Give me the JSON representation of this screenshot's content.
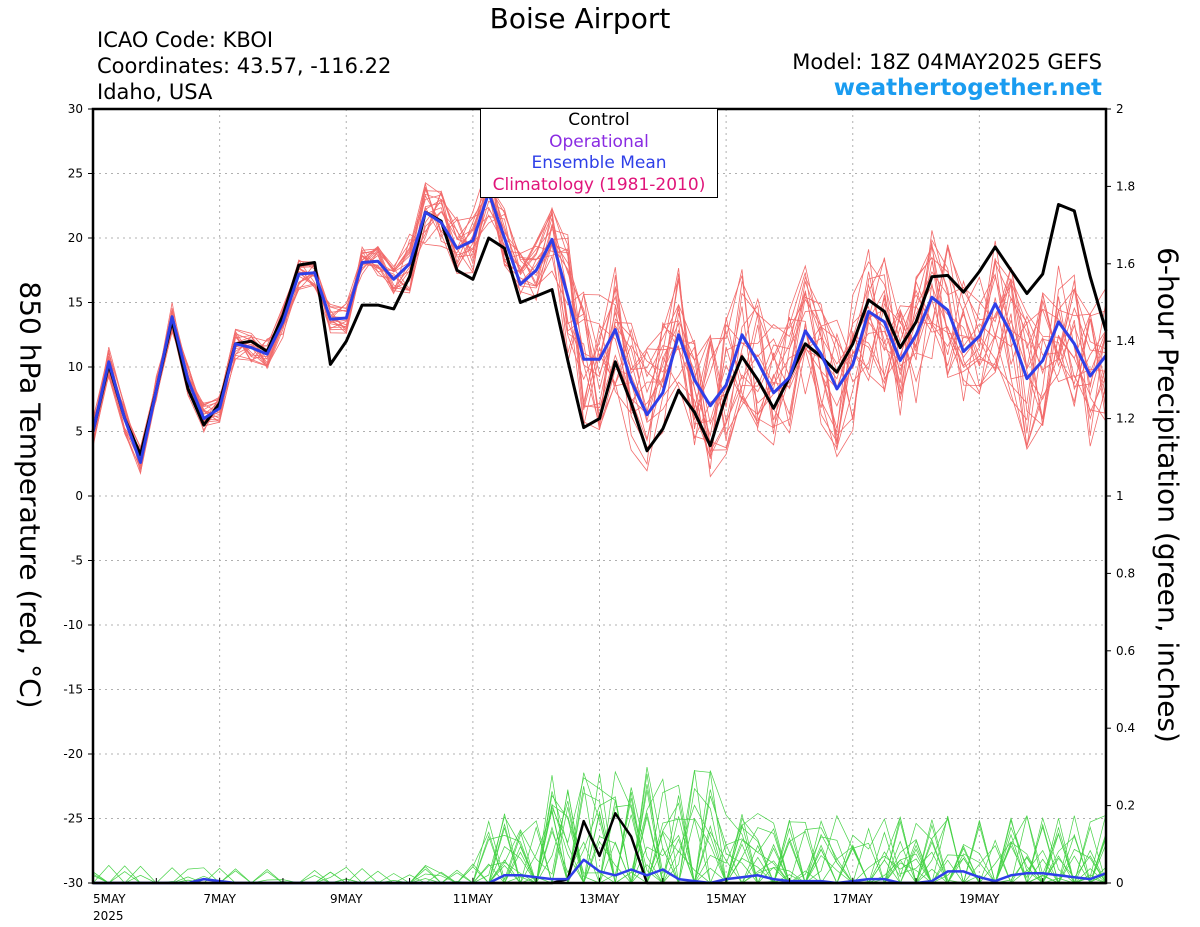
{
  "header": {
    "title": "Boise Airport",
    "icao": "ICAO Code: KBOI",
    "coords": "Coordinates: 43.57, -116.22",
    "region": "Idaho, USA",
    "model": "Model: 18Z 04MAY2025 GEFS",
    "site": "weathertogether.net"
  },
  "colors": {
    "members_temp": "#f26b6b",
    "members_precip": "#46d246",
    "control": "#000000",
    "operational": "#8a2be2",
    "mean": "#2e3fe8",
    "climatology": "#e0157a",
    "site": "#1a9cf0"
  },
  "chart_data": {
    "type": "line",
    "title": "Boise Airport",
    "ylabel": "850 hPa Temperature (red, °C)",
    "y2label": "6-hour Precipitation (green, inches)",
    "ylim": [
      -30,
      30
    ],
    "y2lim": [
      0,
      2
    ],
    "yticks": [
      -30,
      -25,
      -20,
      -15,
      -10,
      -5,
      0,
      5,
      10,
      15,
      20,
      25,
      30
    ],
    "y2ticks": [
      "0",
      "0.2",
      "0.4",
      "0.6",
      "0.8",
      "1",
      "1.2",
      "1.4",
      "1.6",
      "1.8",
      "2"
    ],
    "xlabels": [
      "5MAY",
      "7MAY",
      "9MAY",
      "11MAY",
      "13MAY",
      "15MAY",
      "17MAY",
      "19MAY"
    ],
    "xlabel_year": "2025",
    "grid": true,
    "legend": {
      "position": "top-center",
      "entries": [
        "Control",
        "Operational",
        "Ensemble Mean",
        "Climatology (1981-2010)"
      ]
    },
    "x_hours_from_start_step": 6,
    "series": [
      {
        "name": "Control",
        "axis": "temperature",
        "values": [
          5.0,
          10.2,
          6.0,
          3.2,
          8.2,
          13.6,
          8.3,
          5.5,
          7.2,
          11.8,
          12.0,
          11.2,
          14.0,
          17.9,
          18.1,
          10.2,
          12.0,
          14.8,
          14.8,
          14.5,
          17.0,
          22.0,
          21.3,
          17.5,
          16.8,
          20.0,
          19.2,
          15.0,
          15.5,
          16.0,
          10.5,
          5.3,
          6.0,
          10.4,
          7.2,
          3.5,
          5.2,
          8.2,
          6.5,
          3.9,
          7.8,
          10.8,
          9.0,
          6.8,
          9.2,
          11.8,
          10.8,
          9.6,
          11.8,
          15.2,
          14.3,
          11.5,
          13.5,
          17.0,
          17.1,
          15.8,
          17.4,
          19.3,
          17.5,
          15.7,
          17.2,
          22.6,
          22.1,
          17.0,
          12.8
        ]
      },
      {
        "name": "Ensemble Mean",
        "axis": "temperature",
        "values": [
          5.0,
          10.4,
          6.0,
          2.6,
          8.2,
          13.9,
          9.0,
          6.0,
          6.8,
          11.8,
          11.5,
          11.0,
          13.5,
          17.2,
          17.3,
          13.7,
          13.8,
          18.1,
          18.2,
          16.8,
          18.0,
          22.0,
          21.2,
          19.2,
          19.8,
          23.5,
          20.0,
          16.4,
          17.5,
          19.9,
          15.5,
          10.6,
          10.6,
          12.9,
          8.9,
          6.3,
          8.0,
          12.5,
          9.0,
          7.0,
          8.6,
          12.5,
          10.4,
          8.0,
          9.2,
          12.8,
          11.0,
          8.3,
          10.2,
          14.3,
          13.5,
          10.5,
          12.5,
          15.4,
          14.4,
          11.2,
          12.4,
          14.9,
          12.6,
          9.1,
          10.5,
          13.5,
          11.8,
          9.3,
          10.9
        ]
      },
      {
        "name": "Control precipitation",
        "axis": "precipitation",
        "values": [
          0,
          0,
          0,
          0,
          0,
          0,
          0,
          0,
          0,
          0,
          0,
          0,
          0,
          0,
          0,
          0,
          0,
          0,
          0,
          0,
          0,
          0,
          0,
          0,
          0,
          0,
          0,
          0,
          0,
          0,
          0.01,
          0.16,
          0.07,
          0.18,
          0.12,
          0,
          0,
          0,
          0,
          0,
          0,
          0,
          0,
          0,
          0,
          0,
          0,
          0,
          0,
          0,
          0,
          0,
          0,
          0,
          0,
          0,
          0,
          0,
          0,
          0,
          0,
          0,
          0,
          0,
          0
        ]
      },
      {
        "name": "Ensemble Mean precipitation",
        "axis": "precipitation",
        "values": [
          0,
          0,
          0,
          0,
          0,
          0,
          0,
          0.01,
          0.005,
          0,
          0,
          0,
          0,
          0,
          0,
          0,
          0,
          0,
          0,
          0,
          0,
          0,
          0,
          0,
          0,
          0,
          0.02,
          0.02,
          0.015,
          0.01,
          0.01,
          0.06,
          0.03,
          0.02,
          0.035,
          0.02,
          0.035,
          0.01,
          0.005,
          0,
          0.01,
          0.015,
          0.02,
          0.01,
          0.005,
          0.005,
          0.005,
          0,
          0.005,
          0.01,
          0.01,
          0,
          0,
          0.005,
          0.03,
          0.03,
          0.015,
          0.005,
          0.02,
          0.025,
          0.025,
          0.02,
          0.015,
          0.01,
          0.025
        ]
      }
    ]
  }
}
